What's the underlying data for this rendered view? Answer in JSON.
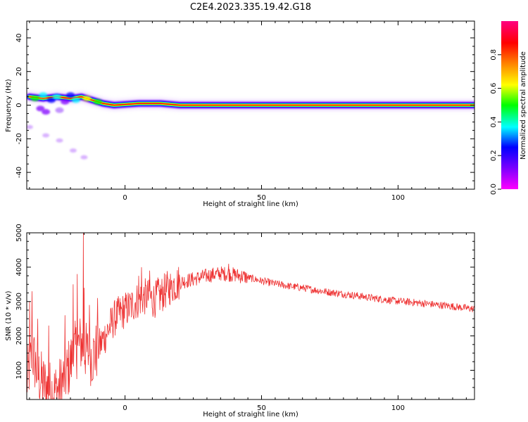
{
  "figure": {
    "title": "C2E4.2023.335.19.42.G18"
  },
  "chart_data": [
    {
      "type": "heatmap",
      "xlabel": "Height of straight line (km)",
      "ylabel": "Frequency (Hz)",
      "xlim": [
        -36,
        128
      ],
      "ylim": [
        -50,
        50
      ],
      "xticks": [
        0,
        50,
        100
      ],
      "yticks": [
        -40,
        -20,
        0,
        20,
        40
      ],
      "colorbar": {
        "label": "Normalized spectral amplitude",
        "range": [
          0,
          1
        ],
        "ticks": [
          0.0,
          0.2,
          0.4,
          0.6,
          0.8
        ],
        "colormap": [
          "#ff00ff",
          "#8000ff",
          "#0000ff",
          "#00ffff",
          "#00ff00",
          "#ffff00",
          "#ff8000",
          "#ff0000",
          "#ff0080"
        ]
      },
      "ridge": [
        {
          "x": -35,
          "f": 5
        },
        {
          "x": -30,
          "f": 4
        },
        {
          "x": -25,
          "f": 5
        },
        {
          "x": -20,
          "f": 4
        },
        {
          "x": -16,
          "f": 5
        },
        {
          "x": -12,
          "f": 3
        },
        {
          "x": -8,
          "f": 1
        },
        {
          "x": -4,
          "f": 0
        },
        {
          "x": 5,
          "f": 1
        },
        {
          "x": 13,
          "f": 1
        },
        {
          "x": 20,
          "f": 0
        },
        {
          "x": 128,
          "f": 0
        }
      ],
      "faint_branch": [
        {
          "x": -35,
          "f": -13
        },
        {
          "x": -29,
          "f": -18
        },
        {
          "x": -24,
          "f": -21
        },
        {
          "x": -19,
          "f": -27
        },
        {
          "x": -15,
          "f": -31
        }
      ]
    },
    {
      "type": "line",
      "xlabel": "Height of straight line (km)",
      "ylabel": "SNR (10 * v/v)",
      "xlim": [
        -36,
        128
      ],
      "ylim": [
        150,
        5000
      ],
      "xticks": [
        0,
        50,
        100
      ],
      "yticks": [
        1000,
        2000,
        3000,
        4000,
        5000
      ],
      "color": "#ee3333",
      "series": [
        {
          "values": [
            {
              "x": -36,
              "y": 650
            },
            {
              "x": -34,
              "y": 1500
            },
            {
              "x": -32,
              "y": 900
            },
            {
              "x": -30,
              "y": 600
            },
            {
              "x": -28,
              "y": 450
            },
            {
              "x": -26,
              "y": 350
            },
            {
              "x": -24,
              "y": 500
            },
            {
              "x": -22,
              "y": 800
            },
            {
              "x": -20,
              "y": 1200
            },
            {
              "x": -18,
              "y": 1600
            },
            {
              "x": -16,
              "y": 1800
            },
            {
              "x": -14,
              "y": 1500
            },
            {
              "x": -12,
              "y": 1400
            },
            {
              "x": -10,
              "y": 1600
            },
            {
              "x": -8,
              "y": 1900
            },
            {
              "x": -6,
              "y": 2200
            },
            {
              "x": -4,
              "y": 2500
            },
            {
              "x": -2,
              "y": 2650
            },
            {
              "x": 0,
              "y": 2750
            },
            {
              "x": 2,
              "y": 2850
            },
            {
              "x": 4,
              "y": 3000
            },
            {
              "x": 6,
              "y": 3100
            },
            {
              "x": 8,
              "y": 3150
            },
            {
              "x": 10,
              "y": 3050
            },
            {
              "x": 12,
              "y": 3100
            },
            {
              "x": 14,
              "y": 3250
            },
            {
              "x": 16,
              "y": 3400
            },
            {
              "x": 18,
              "y": 3500
            },
            {
              "x": 20,
              "y": 3560
            },
            {
              "x": 25,
              "y": 3650
            },
            {
              "x": 30,
              "y": 3750
            },
            {
              "x": 35,
              "y": 3820
            },
            {
              "x": 40,
              "y": 3780
            },
            {
              "x": 45,
              "y": 3700
            },
            {
              "x": 50,
              "y": 3600
            },
            {
              "x": 55,
              "y": 3520
            },
            {
              "x": 60,
              "y": 3450
            },
            {
              "x": 65,
              "y": 3400
            },
            {
              "x": 70,
              "y": 3330
            },
            {
              "x": 75,
              "y": 3270
            },
            {
              "x": 80,
              "y": 3220
            },
            {
              "x": 85,
              "y": 3170
            },
            {
              "x": 90,
              "y": 3110
            },
            {
              "x": 95,
              "y": 3060
            },
            {
              "x": 100,
              "y": 3010
            },
            {
              "x": 105,
              "y": 2980
            },
            {
              "x": 110,
              "y": 2940
            },
            {
              "x": 115,
              "y": 2900
            },
            {
              "x": 120,
              "y": 2860
            },
            {
              "x": 125,
              "y": 2810
            },
            {
              "x": 128,
              "y": 2780
            }
          ],
          "spikes": [
            {
              "x": -35,
              "y": 3000
            },
            {
              "x": -34,
              "y": 3300
            },
            {
              "x": -32,
              "y": 2500
            },
            {
              "x": -28,
              "y": 2300
            },
            {
              "x": -22,
              "y": 2600
            },
            {
              "x": -19,
              "y": 3500
            },
            {
              "x": -17.5,
              "y": 3800
            },
            {
              "x": -15,
              "y": 3400
            },
            {
              "x": -15.3,
              "y": 5000
            },
            {
              "x": -13,
              "y": 2900
            },
            {
              "x": -10,
              "y": 3100
            },
            {
              "x": 5,
              "y": 3750
            },
            {
              "x": 6,
              "y": 4000
            },
            {
              "x": 9,
              "y": 3900
            },
            {
              "x": 12,
              "y": 3700
            },
            {
              "x": 17,
              "y": 3600
            },
            {
              "x": 38,
              "y": 4100
            }
          ]
        }
      ]
    }
  ]
}
